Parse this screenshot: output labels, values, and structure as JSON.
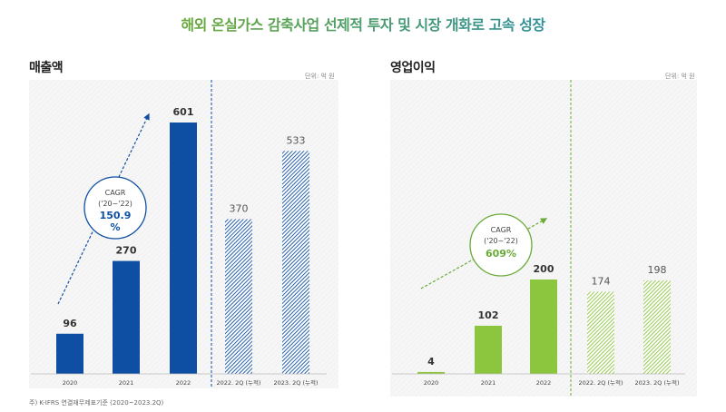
{
  "title": "해외 온실가스 감축사업 선제적 투자 및 시장 개화로 고속 성장",
  "footnote": "주) K-IFRS 연결재무제표기준 (2020~2023.2Q)",
  "chart_data": [
    {
      "type": "bar",
      "title": "매출액",
      "unit": "단위: 억 원",
      "categories": [
        "2020",
        "2021",
        "2022",
        "2022. 2Q (누적)",
        "2023. 2Q (누적)"
      ],
      "values": [
        96,
        270,
        601,
        370,
        533
      ],
      "hatched": [
        false,
        false,
        false,
        true,
        true
      ],
      "color": "#0f4fa3",
      "cagr": {
        "label": "CAGR",
        "period": "('20~'22)",
        "value": "150.9 %"
      }
    },
    {
      "type": "bar",
      "title": "영업이익",
      "unit": "단위: 억 원",
      "categories": [
        "2020",
        "2021",
        "2022",
        "2022. 2Q (누적)",
        "2023. 2Q (누적)"
      ],
      "values": [
        4,
        102,
        200,
        174,
        198
      ],
      "hatched": [
        false,
        false,
        false,
        true,
        true
      ],
      "color": "#8cc63f",
      "cagr": {
        "label": "CAGR",
        "period": "('20~'22)",
        "value": "609%"
      }
    }
  ]
}
